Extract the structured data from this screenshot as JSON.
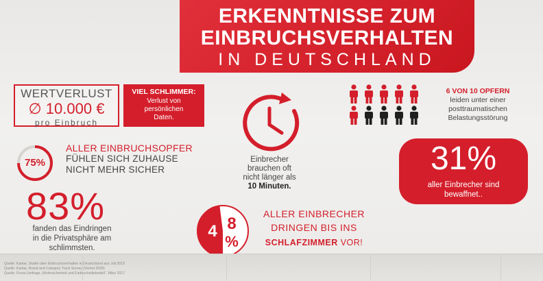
{
  "header": {
    "line1": "ERKENNTNISSE ZUM",
    "line2": "EINBRUCHSVERHALTEN",
    "line3": "IN DEUTSCHLAND"
  },
  "wertverlust": {
    "title": "WERTVERLUST",
    "amount": "∅ 10.000 €",
    "sub": "pro Einbruch"
  },
  "viel_schlimmer": {
    "title": "VIEL SCHLIMMER:",
    "text_l1": "Verlust von",
    "text_l2": "persönlichen",
    "text_l3": "Daten."
  },
  "stat75": {
    "value": "75%",
    "fraction": 0.75,
    "line1": "ALLER EINBRUCHSOPFER",
    "line2": "FÜHLEN SICH ZUHAUSE",
    "line3": "NICHT MEHR SICHER"
  },
  "stat83": {
    "value": "83%",
    "line1": "fanden das Eindringen",
    "line2": "in die Privatsphäre am",
    "line3": "schlimmsten."
  },
  "clock": {
    "icon": "clock-icon",
    "line1": "Einbrecher",
    "line2": "brauchen oft",
    "line3": "nicht länger als",
    "line4": "10 Minuten."
  },
  "stat48": {
    "digit1": "4",
    "digit2": "8",
    "percent": "%",
    "fraction": 0.48,
    "line1": "ALLER EINBRECHER",
    "line2": "DRINGEN BIS INS",
    "line3a": "SCHLAFZIMMER",
    "line3b": " VOR!"
  },
  "victims": {
    "icon": "person-icon",
    "red_count": 6,
    "total": 10,
    "headline": "6 VON 10 OPFERN",
    "line1": "leiden unter einer",
    "line2": "posttraumatischen",
    "line3": "Belastungsstörung"
  },
  "stat31": {
    "value": "31%",
    "line1": "aller Einbrecher sind",
    "line2": "bewaffnet.."
  },
  "sources": {
    "s1": "Quelle: Kantar, Studie über Einbruchsverhalten in Deutschland aus Juli 2019",
    "s2": "Quelle: Kantar, Brand and Category Track Survey (Verbot 2020)",
    "s3": "Quelle: Forsa-Umfrage „Wohnsicherheit und Einbruchsdiebstahl“, März 2017"
  },
  "colors": {
    "accent": "#d41e2b",
    "dark": "#222222",
    "text": "#444444"
  }
}
